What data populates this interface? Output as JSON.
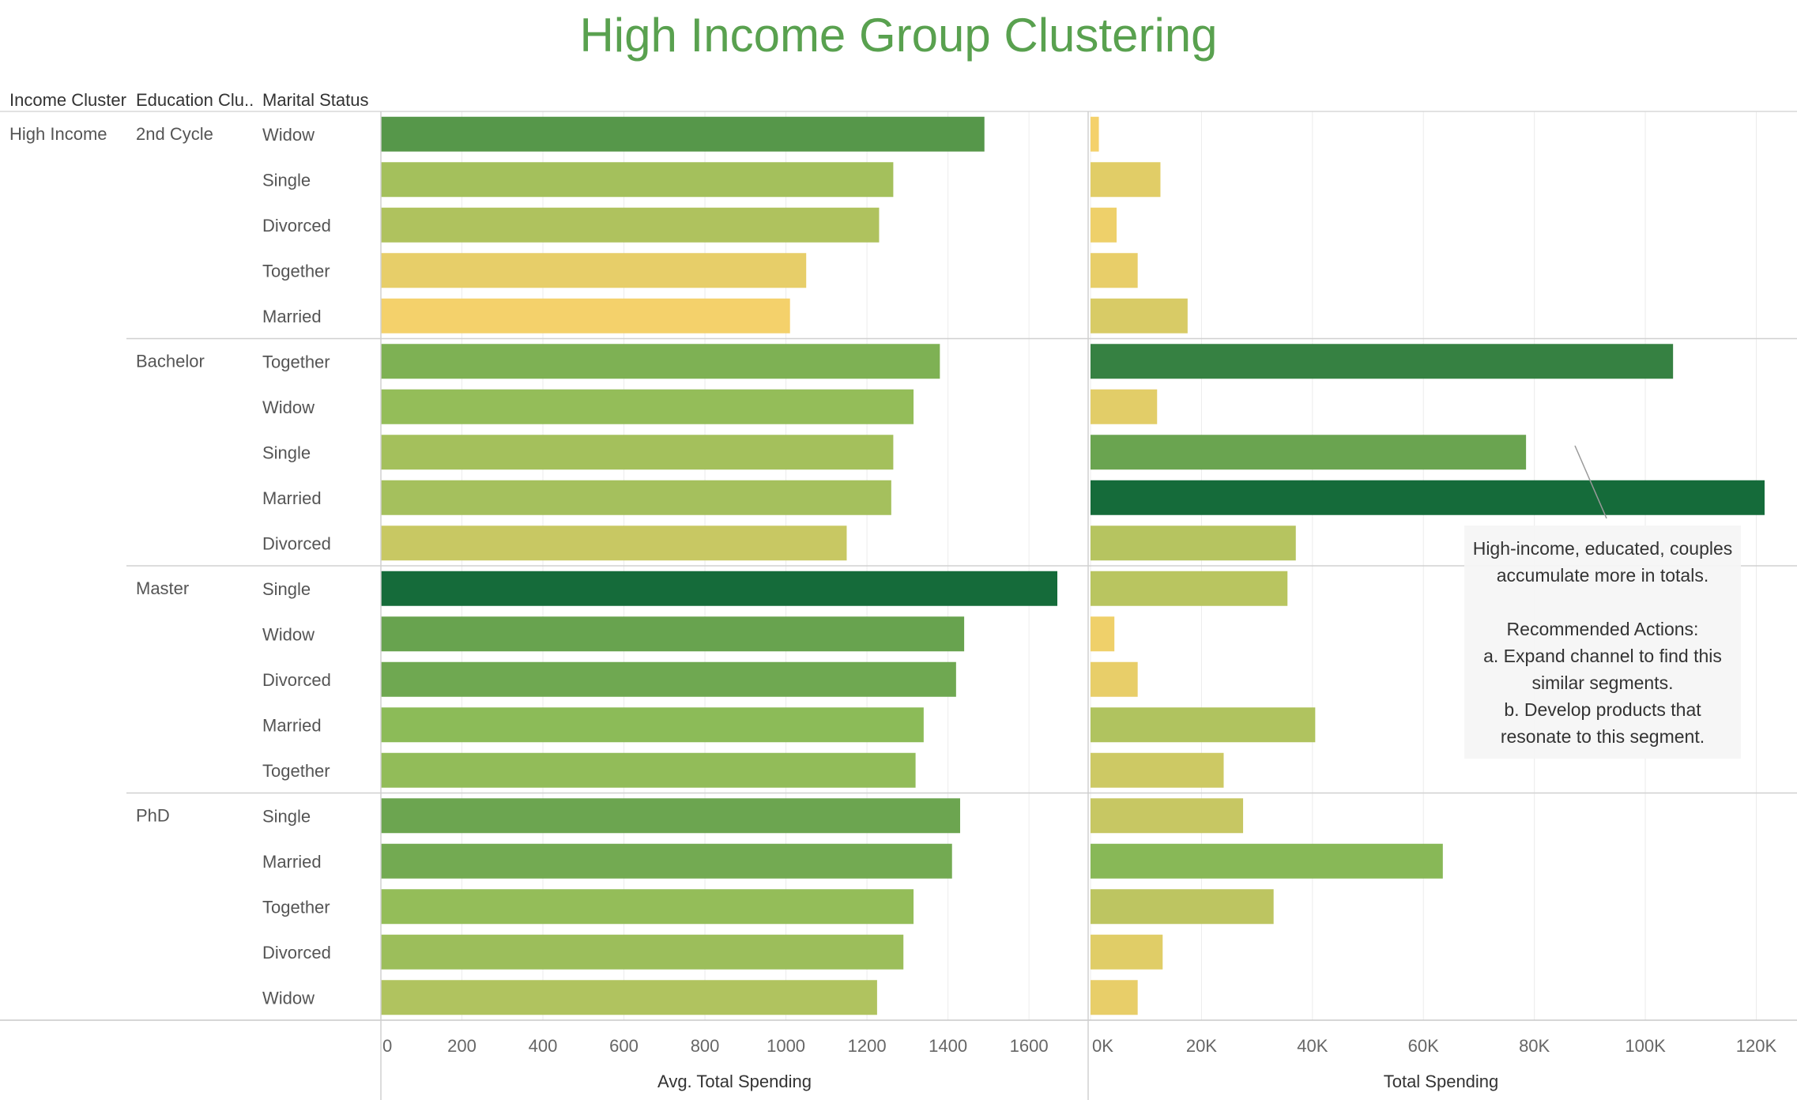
{
  "title": "High Income Group Clustering",
  "headers": {
    "income_cluster": "Income Cluster",
    "education_cluster": "Education Clu..",
    "marital_status": "Marital Status"
  },
  "chart_data": {
    "type": "bar",
    "income_cluster": "High Income",
    "groups": [
      {
        "education": "2nd Cycle",
        "rows": [
          {
            "status": "Widow",
            "avg": 1490,
            "total": 1500
          },
          {
            "status": "Single",
            "avg": 1265,
            "total": 12600
          },
          {
            "status": "Divorced",
            "avg": 1230,
            "total": 4700
          },
          {
            "status": "Together",
            "avg": 1050,
            "total": 8500
          },
          {
            "status": "Married",
            "avg": 1010,
            "total": 17500
          }
        ]
      },
      {
        "education": "Bachelor",
        "rows": [
          {
            "status": "Together",
            "avg": 1380,
            "total": 105000
          },
          {
            "status": "Widow",
            "avg": 1315,
            "total": 12000
          },
          {
            "status": "Single",
            "avg": 1265,
            "total": 78500
          },
          {
            "status": "Married",
            "avg": 1260,
            "total": 121500
          },
          {
            "status": "Divorced",
            "avg": 1150,
            "total": 37000
          }
        ]
      },
      {
        "education": "Master",
        "rows": [
          {
            "status": "Single",
            "avg": 1670,
            "total": 35500
          },
          {
            "status": "Widow",
            "avg": 1440,
            "total": 4300
          },
          {
            "status": "Divorced",
            "avg": 1420,
            "total": 8500
          },
          {
            "status": "Married",
            "avg": 1340,
            "total": 40500
          },
          {
            "status": "Together",
            "avg": 1320,
            "total": 24000
          }
        ]
      },
      {
        "education": "PhD",
        "rows": [
          {
            "status": "Single",
            "avg": 1430,
            "total": 27500
          },
          {
            "status": "Married",
            "avg": 1410,
            "total": 63500
          },
          {
            "status": "Together",
            "avg": 1315,
            "total": 33000
          },
          {
            "status": "Divorced",
            "avg": 1290,
            "total": 13000
          },
          {
            "status": "Widow",
            "avg": 1225,
            "total": 8500
          }
        ]
      }
    ],
    "avg_axis": {
      "label": "Avg. Total Spending",
      "xlim": [
        0,
        1700
      ],
      "ticks": [
        0,
        200,
        400,
        600,
        800,
        1000,
        1200,
        1400,
        1600
      ],
      "tick_labels": [
        "0",
        "200",
        "400",
        "600",
        "800",
        "1000",
        "1200",
        "1400",
        "1600"
      ]
    },
    "total_axis": {
      "label": "Total Spending",
      "xlim": [
        0,
        125000
      ],
      "ticks": [
        0,
        20000,
        40000,
        60000,
        80000,
        100000,
        120000
      ],
      "tick_labels": [
        "0K",
        "20K",
        "40K",
        "60K",
        "80K",
        "100K",
        "120K"
      ]
    },
    "colors": {
      "low": "#f4d16b",
      "mid": "#8cbb58",
      "high": "#156b3a"
    },
    "grid": true
  },
  "annotation": {
    "lines": [
      "High-income, educated, couples",
      "accumulate more in totals.",
      "",
      "Recommended Actions:",
      "a. Expand channel to find this",
      "similar segments.",
      "b. Develop products that",
      "resonate to this segment."
    ]
  }
}
